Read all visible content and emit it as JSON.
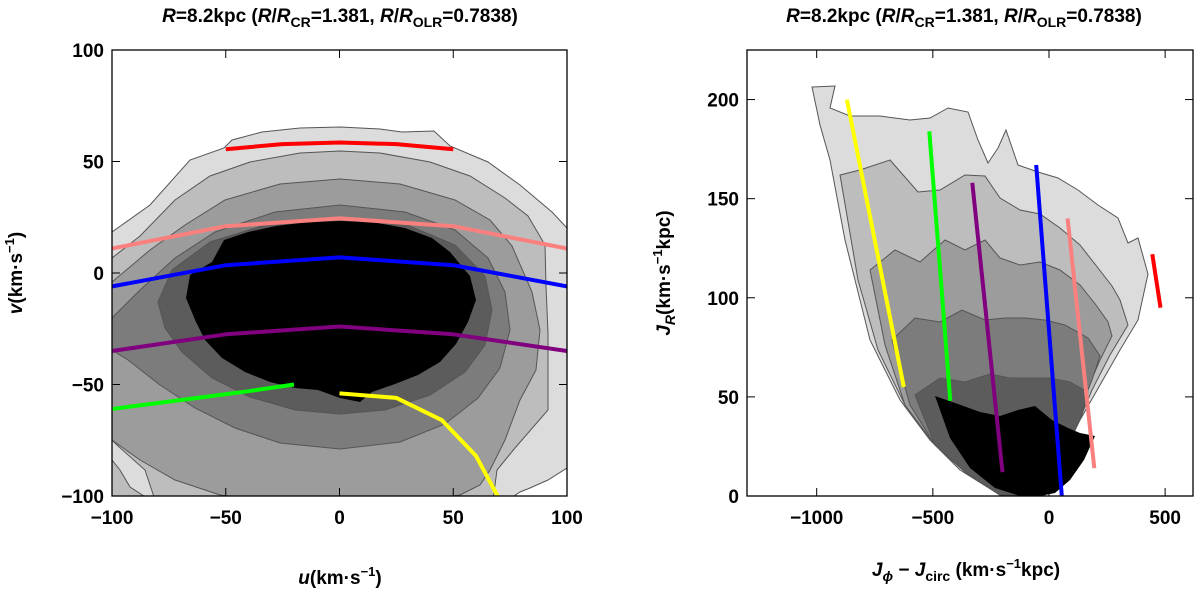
{
  "chart_data": [
    {
      "type": "contour",
      "title": {
        "prefix": "R",
        "eq1": "=8.2kpc (",
        "r1": "R",
        "slash1": "/",
        "r2": "R",
        "sub1": "CR",
        "eq2": "=1.381, ",
        "r3": "R",
        "slash2": "/",
        "r4": "R",
        "sub2": "OLR",
        "eq3": "=0.7838)"
      },
      "xlabel": {
        "sym": "u",
        "unit": "(km·s",
        "exp": "−1",
        "close": ")"
      },
      "ylabel": {
        "sym": "v",
        "unit": "(km·s",
        "exp": "−1",
        "close": ")"
      },
      "xlim": [
        -100,
        100
      ],
      "ylim": [
        -100,
        100
      ],
      "xticks": [
        "−100",
        "−50",
        "0",
        "50",
        "100"
      ],
      "yticks": [
        "−100",
        "−50",
        "0",
        "50",
        "100"
      ],
      "xtick_values": [
        -100,
        -50,
        0,
        50,
        100
      ],
      "ytick_values": [
        -100,
        -50,
        0,
        50,
        100
      ],
      "contour_fills": [
        "#dcdcdc",
        "#bdbdbd",
        "#9c9c9c",
        "#7c7c7c",
        "#5c5c5c",
        "#000000"
      ],
      "series": [
        {
          "name": "red",
          "color": "#ff0000",
          "points": [
            [
              -50,
              55.5
            ],
            [
              -25,
              57.8
            ],
            [
              0,
              58.5
            ],
            [
              25,
              57.8
            ],
            [
              50,
              55.5
            ]
          ]
        },
        {
          "name": "pink",
          "color": "#fa8080",
          "points": [
            [
              -100,
              11
            ],
            [
              -50,
              21
            ],
            [
              0,
              24.5
            ],
            [
              50,
              21
            ],
            [
              100,
              11
            ]
          ]
        },
        {
          "name": "blue",
          "color": "#0000ff",
          "points": [
            [
              -100,
              -6
            ],
            [
              -50,
              3.5
            ],
            [
              0,
              7
            ],
            [
              50,
              3.5
            ],
            [
              100,
              -6
            ]
          ]
        },
        {
          "name": "purple",
          "color": "#800080",
          "points": [
            [
              -100,
              -35
            ],
            [
              -50,
              -27.5
            ],
            [
              0,
              -24
            ],
            [
              50,
              -27.5
            ],
            [
              100,
              -35
            ]
          ]
        },
        {
          "name": "green",
          "color": "#00ff00",
          "points": [
            [
              -100,
              -61
            ],
            [
              -70,
              -57
            ],
            [
              -40,
              -53
            ],
            [
              -20,
              -50
            ]
          ]
        },
        {
          "name": "yellow",
          "color": "#ffff00",
          "points": [
            [
              0,
              -54
            ],
            [
              25,
              -56
            ],
            [
              45,
              -66
            ],
            [
              60,
              -82
            ],
            [
              70,
              -101
            ]
          ]
        }
      ]
    },
    {
      "type": "contour",
      "title": {
        "prefix": "R",
        "eq1": "=8.2kpc (",
        "r1": "R",
        "slash1": "/",
        "r2": "R",
        "sub1": "CR",
        "eq2": "=1.381, ",
        "r3": "R",
        "slash2": "/",
        "r4": "R",
        "sub2": "OLR",
        "eq3": "=0.7838)"
      },
      "xlabel": {
        "sym1": "J",
        "sub1": "ϕ",
        "mid": " − ",
        "sym2": "J",
        "sub2": "circ",
        "unit": " (km·s",
        "exp": "−1",
        "close": "kpc)"
      },
      "ylabel": {
        "sym": "J",
        "sub": "R",
        "unit": "(km·s",
        "exp": "−1",
        "close": "kpc)"
      },
      "xlim": [
        -1300,
        620
      ],
      "ylim": [
        0,
        225
      ],
      "xticks": [
        "−1000",
        "−500",
        "0",
        "500"
      ],
      "yticks": [
        "0",
        "50",
        "100",
        "150",
        "200"
      ],
      "xtick_values": [
        -1000,
        -500,
        0,
        500
      ],
      "ytick_values": [
        0,
        50,
        100,
        150,
        200
      ],
      "contour_fills": [
        "#dcdcdc",
        "#bdbdbd",
        "#9c9c9c",
        "#7c7c7c",
        "#5c5c5c",
        "#000000"
      ],
      "series": [
        {
          "name": "yellow",
          "color": "#ffff00",
          "points": [
            [
              -870,
              200
            ],
            [
              -625,
              55
            ]
          ]
        },
        {
          "name": "green",
          "color": "#00ff00",
          "points": [
            [
              -515,
              184
            ],
            [
              -425,
              48
            ]
          ]
        },
        {
          "name": "purple",
          "color": "#800080",
          "points": [
            [
              -330,
              158
            ],
            [
              -200,
              12
            ]
          ]
        },
        {
          "name": "blue",
          "color": "#0000ff",
          "points": [
            [
              -55,
              167
            ],
            [
              55,
              0
            ]
          ]
        },
        {
          "name": "pink",
          "color": "#fa8080",
          "points": [
            [
              80,
              140
            ],
            [
              195,
              14
            ]
          ]
        },
        {
          "name": "red",
          "color": "#ff0000",
          "points": [
            [
              445,
              122
            ],
            [
              480,
              95
            ]
          ]
        }
      ]
    }
  ]
}
